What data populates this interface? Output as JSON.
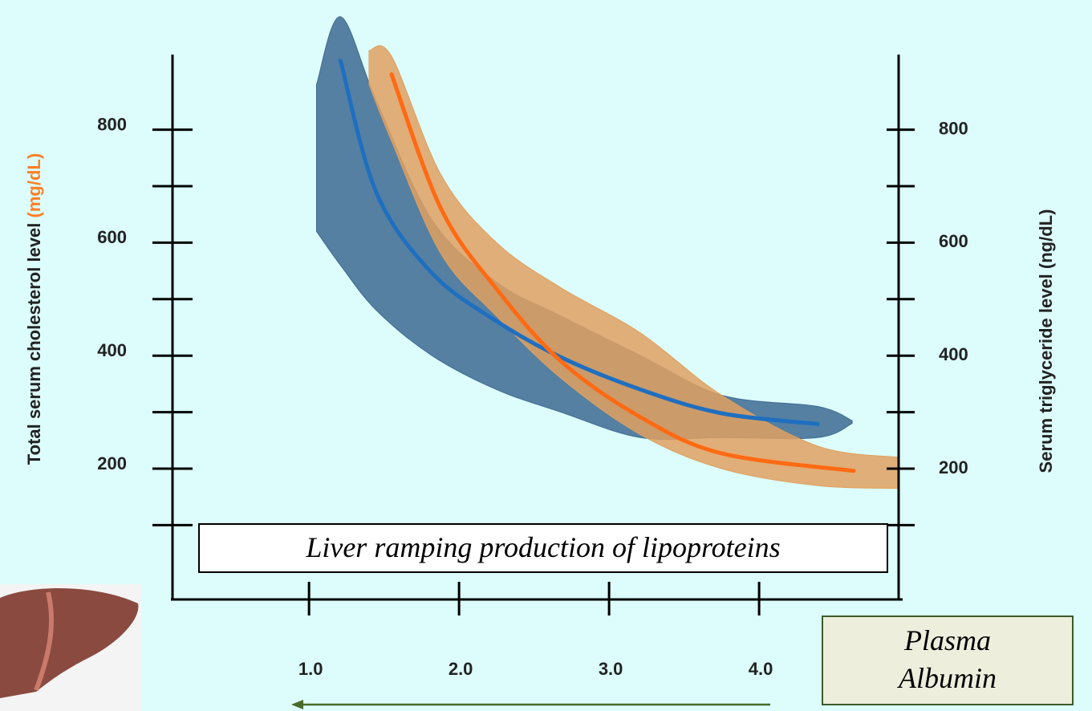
{
  "chart_data": {
    "type": "line",
    "ylabel": "Total  serum  cholesterol  level",
    "ylabel_unit": "(mg/dL)",
    "ylabel_unit_color": "#ff7f27",
    "y2label": "Serum  triglyceride  level (ng/dL)",
    "annotation": "Liver ramping production of lipoproteins",
    "xlabel_lines": [
      "Plasma",
      "Albumin"
    ],
    "xlim": [
      0.09,
      4.93
    ],
    "xticks": [
      {
        "value": 1,
        "label": "1.0"
      },
      {
        "value": 2,
        "label": "2.0"
      },
      {
        "value": 3,
        "label": "3.0"
      },
      {
        "value": 4,
        "label": "4.0"
      }
    ],
    "ylim": [
      -33,
      933
    ],
    "yticks": [
      200,
      400,
      600,
      800
    ],
    "yminorticks": [
      100,
      300,
      500,
      700
    ],
    "y2lim": [
      -33,
      933
    ],
    "y2ticks": [
      200,
      400,
      600,
      800
    ],
    "y2minorticks": [
      100,
      300,
      500,
      700
    ],
    "series": [
      {
        "color": "#1f6fc0",
        "band_color": "#3d6a92",
        "axis": "y",
        "x": [
          1.21,
          1.45,
          1.82,
          2.25,
          2.68,
          3.21,
          3.75,
          4.39
        ],
        "values": [
          922,
          688,
          546,
          461,
          397,
          340,
          298,
          279
        ],
        "band": {
          "x": [
            1.05,
            1.21,
            1.45,
            1.82,
            2.25,
            2.68,
            3.21,
            3.75,
            4.39,
            4.62
          ],
          "upper": [
            880,
            1000,
            850,
            640,
            530,
            470,
            400,
            330,
            310,
            285
          ],
          "lower": [
            620,
            560,
            480,
            400,
            340,
            300,
            255,
            255,
            255,
            280
          ]
        }
      },
      {
        "color": "#ff6a13",
        "band_color": "#e0a060",
        "axis": "y2",
        "x": [
          1.55,
          1.88,
          2.25,
          2.68,
          3.21,
          3.75,
          4.63
        ],
        "values": [
          898,
          660,
          518,
          390,
          291,
          227,
          196
        ],
        "band": {
          "x": [
            1.4,
            1.55,
            1.88,
            2.25,
            2.68,
            3.21,
            3.75,
            4.39,
            4.93
          ],
          "upper": [
            940,
            930,
            720,
            600,
            520,
            440,
            330,
            240,
            220
          ],
          "lower": [
            880,
            780,
            580,
            470,
            360,
            260,
            200,
            170,
            165
          ]
        }
      }
    ]
  }
}
